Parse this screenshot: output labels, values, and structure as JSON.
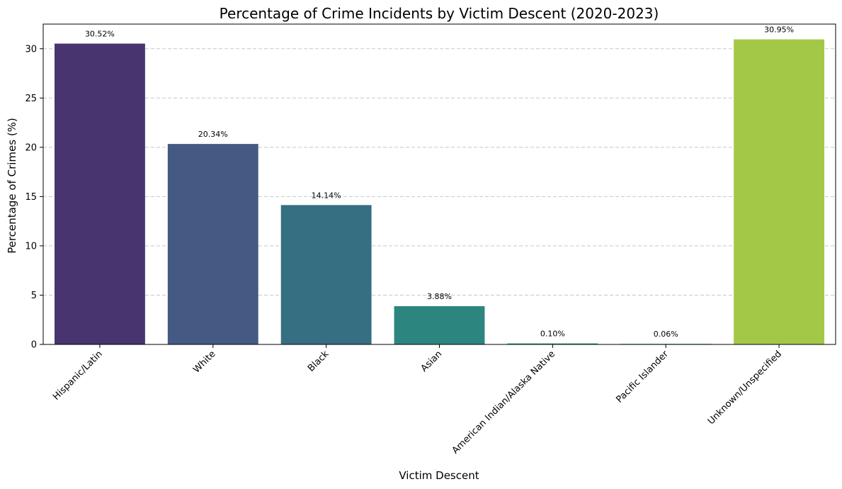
{
  "chart_data": {
    "type": "bar",
    "title": "Percentage of Crime Incidents by Victim Descent (2020-2023)",
    "xlabel": "Victim Descent",
    "ylabel": "Percentage of Crimes (%)",
    "categories": [
      "Hispanic/Latin",
      "White",
      "Black",
      "Asian",
      "American Indian/Alaska Native",
      "Pacific Islander",
      "Unknown/Unspecified"
    ],
    "values": [
      30.52,
      20.34,
      14.14,
      3.88,
      0.1,
      0.06,
      30.95
    ],
    "value_labels": [
      "30.52%",
      "20.34%",
      "14.14%",
      "3.88%",
      "0.10%",
      "0.06%",
      "30.95%"
    ],
    "colors": [
      "#48346f",
      "#455a83",
      "#376f82",
      "#2d8580",
      "#2f9b7a",
      "#4cb56a",
      "#a3c847"
    ],
    "ylim": [
      0,
      32.5
    ],
    "yticks": [
      0,
      5,
      10,
      15,
      20,
      25,
      30
    ],
    "grid": true
  }
}
